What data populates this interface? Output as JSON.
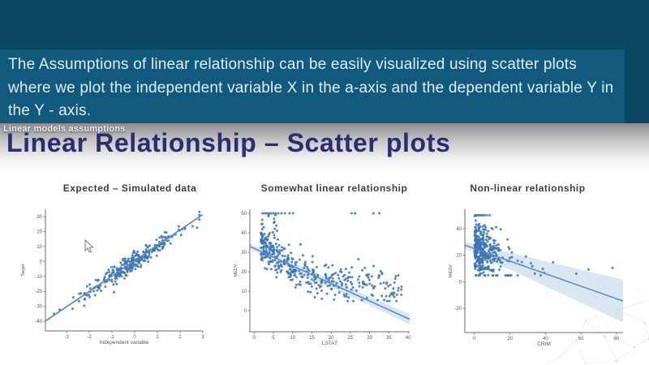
{
  "video": {
    "caption_lines": [
      "The Assumptions of linear relationship can be easily visualized using scatter plots",
      "where we plot the independent variable X in the a-axis and the dependent variable Y in",
      "the Y - axis."
    ]
  },
  "slide": {
    "overlay_label": "Linear models assumptions",
    "title": "Linear Relationship – Scatter plots"
  },
  "icons": {
    "mouse_cursor": "pointer-arrow",
    "watermark": "network-mesh"
  },
  "colors": {
    "header_bg": "#0b4765",
    "caption_bg": "#115a7d",
    "caption_text": "#ddeef8",
    "slide_title": "#2b2d6e",
    "scatter_point": "#3b76b3",
    "trend_line": "#5688be",
    "ci_band": "#b9d3e8",
    "gray_band_top": "#8d8d8f"
  },
  "chart_data": [
    {
      "id": "expected",
      "type": "scatter",
      "title": "Expected – Simulated data",
      "xlabel": "Independent variable",
      "ylabel": "Target",
      "axes": {
        "xlim": [
          -3.93,
          3.0
        ],
        "ylim": [
          -46.4,
          34.8
        ],
        "xticks": [
          -3,
          -2,
          -1,
          0,
          1,
          2,
          3
        ],
        "yticks": [
          30,
          20,
          10,
          0,
          -10,
          -20,
          -30,
          -40
        ],
        "grid": false
      },
      "trend": {
        "x": [
          -3.9,
          3.0
        ],
        "y": [
          -39.5,
          31.3
        ]
      },
      "ci": {
        "hw0": 0.8,
        "hw1": 0.8
      },
      "gen": {
        "kind": "linear",
        "n": 300,
        "seed": 7,
        "x_sd": 1.05,
        "x_clip": [
          -3.6,
          2.85
        ],
        "slope": 10.2,
        "intercept": 0.4,
        "noise_sd": 3.1
      },
      "outliers": [
        [
          -3.55,
          -35
        ],
        [
          -2.7,
          -24
        ],
        [
          -2.45,
          -26.5
        ],
        [
          2.75,
          22.5
        ]
      ]
    },
    {
      "id": "somewhat",
      "type": "scatter",
      "title": "Somewhat linear relationship",
      "xlabel": "LSTAT",
      "ylabel": "MEDV",
      "axes": {
        "xlim": [
          -1.1,
          40.4
        ],
        "ylim": [
          -10.8,
          52.1
        ],
        "xticks": [
          0,
          5,
          10,
          15,
          20,
          25,
          30,
          35,
          40
        ],
        "yticks": [
          50,
          40,
          30,
          20,
          10,
          0
        ],
        "grid": false
      },
      "trend": {
        "x": [
          -1.1,
          40.4
        ],
        "y": [
          33.0,
          -4.4
        ]
      },
      "ci": {
        "hw0": 1.5,
        "hw1": 2.6
      },
      "gen": {
        "kind": "decay",
        "n": 380,
        "seed": 11,
        "x_min": 1.8,
        "x_max": 38.5,
        "x_pow": 1.7,
        "base": 11,
        "amp": 29,
        "decay": 10,
        "noise_sd": 4.6,
        "y_clip": [
          5,
          50
        ]
      },
      "column": {
        "x": [
          3.5,
          6.2
        ],
        "y": [
          30,
          49.5
        ],
        "n": 26
      },
      "capped": {
        "y": 50,
        "xs": [
          2.2,
          2.8,
          3.3,
          3.9,
          4.4,
          5.0,
          5.6,
          6.3,
          7.1,
          8.0,
          9.2,
          10.1,
          25.3,
          26.2,
          31.0,
          32.5
        ]
      },
      "outliers": [
        [
          31,
          23
        ],
        [
          34.4,
          13.8
        ],
        [
          37.5,
          11.7
        ],
        [
          35.2,
          7.5
        ],
        [
          30.5,
          8.2
        ],
        [
          27,
          16
        ],
        [
          28.5,
          14
        ]
      ]
    },
    {
      "id": "nonlinear",
      "type": "scatter",
      "title": "Non-linear relationship",
      "xlabel": "CRIM",
      "ylabel": "MEDV",
      "axes": {
        "xlim": [
          -5.4,
          83.7
        ],
        "ylim": [
          -38.2,
          54.5
        ],
        "xticks": [
          0,
          20,
          40,
          60,
          80
        ],
        "yticks": [
          40,
          20,
          0,
          -20
        ],
        "grid": false
      },
      "trend": {
        "x": [
          -5.4,
          83.7
        ],
        "y": [
          27.5,
          -14.5
        ]
      },
      "ci": {
        "hw0": 2.5,
        "hw1": 16
      },
      "gen": {
        "kind": "skew",
        "n": 360,
        "seed": 13,
        "x_scale": 6,
        "x_max": 89,
        "slope": -0.45,
        "intercept": 25.5,
        "noise_sd": 9,
        "y_clip": [
          4.8,
          50
        ]
      },
      "capped": {
        "y": 50,
        "xs": [
          0.3,
          0.9,
          1.5,
          2.2,
          3.0,
          3.8,
          4.7,
          5.6,
          7.0,
          8.6
        ]
      },
      "outliers": [
        [
          24.4,
          15.8
        ],
        [
          32.6,
          11.6
        ],
        [
          34,
          6.1
        ],
        [
          38.5,
          9.7
        ],
        [
          39.4,
          6.7
        ],
        [
          44.3,
          14.6
        ],
        [
          57.4,
          6.1
        ],
        [
          64.2,
          9.1
        ],
        [
          77.8,
          10.4
        ]
      ]
    }
  ]
}
